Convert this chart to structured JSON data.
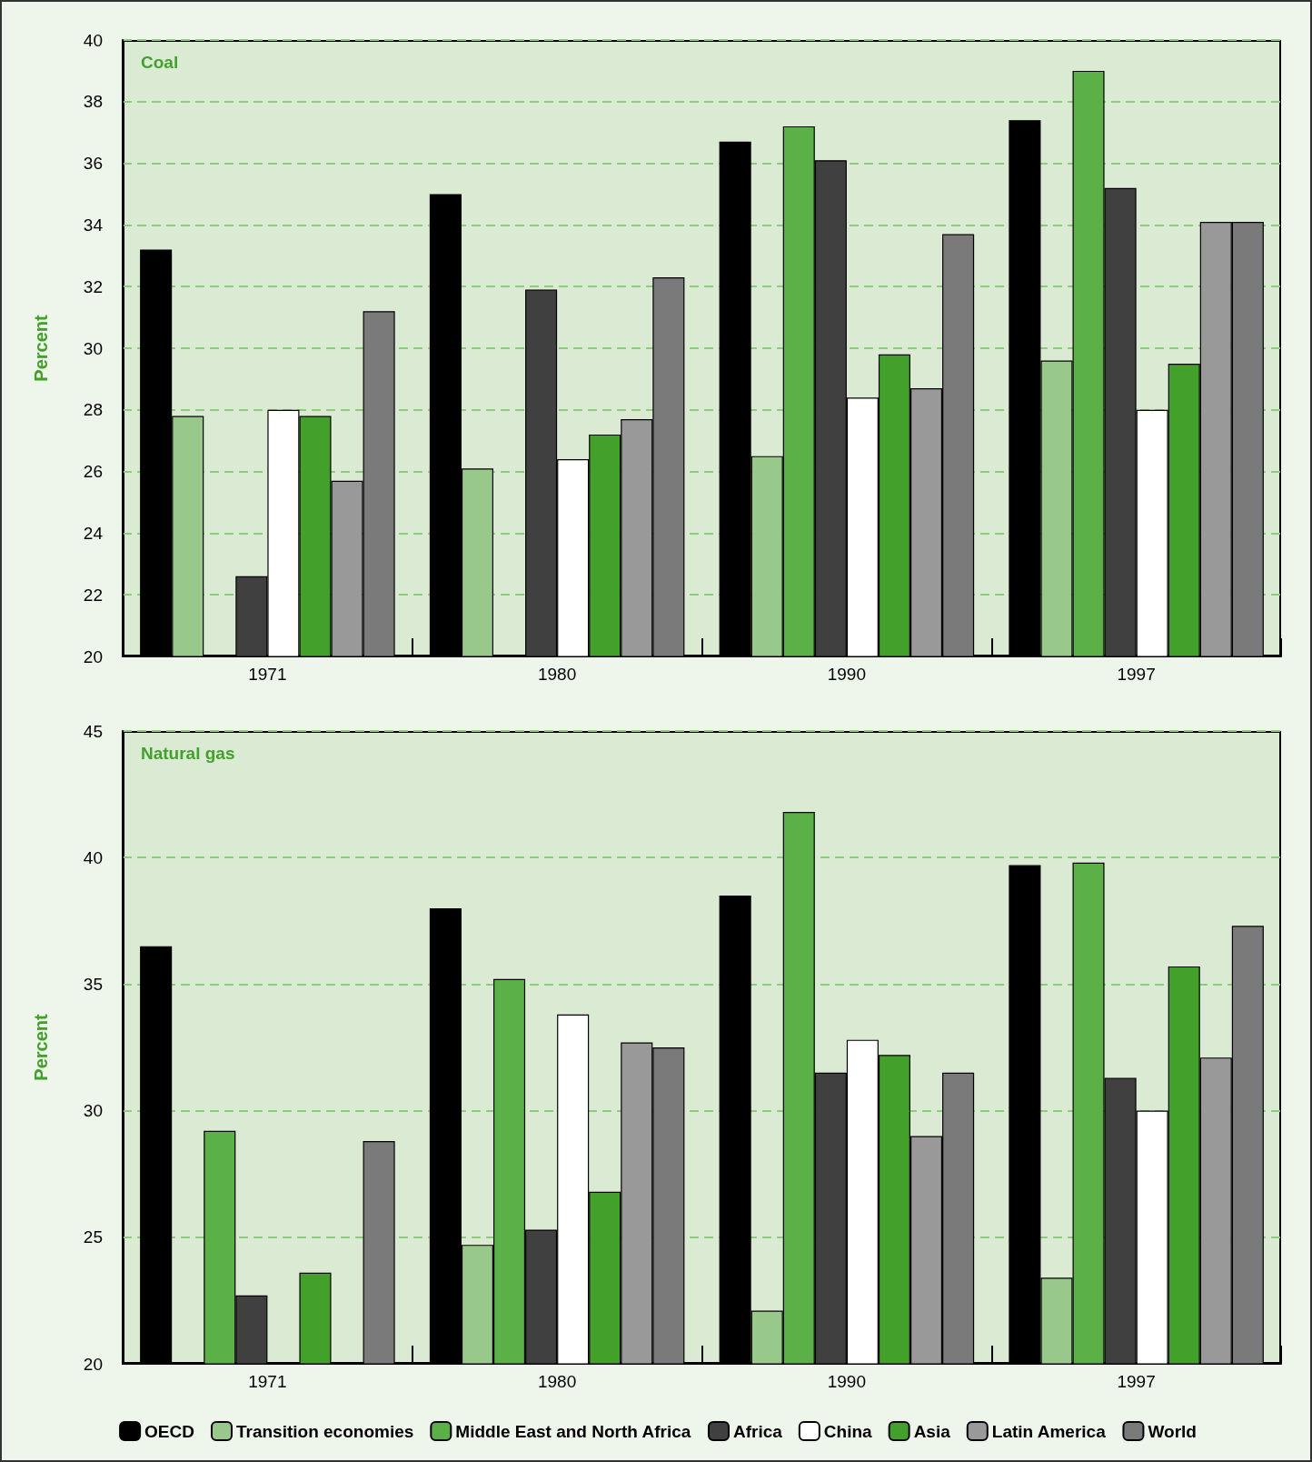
{
  "chart_data": [
    {
      "type": "bar",
      "title": "Coal",
      "ylabel": "Percent",
      "categories": [
        "1971",
        "1980",
        "1990",
        "1997"
      ],
      "ylim": [
        20,
        40
      ],
      "yticks": [
        20,
        22,
        24,
        26,
        28,
        30,
        32,
        34,
        36,
        38,
        40
      ],
      "grid": "y",
      "legend": false,
      "series": [
        {
          "color": "#000000",
          "values": [
            33.2,
            35.0,
            36.7,
            37.4
          ]
        },
        {
          "color": "#98c98a",
          "values": [
            27.8,
            26.1,
            26.5,
            29.6
          ]
        },
        {
          "color": "#5cb048",
          "values": [
            null,
            null,
            37.2,
            39.0
          ]
        },
        {
          "color": "#404040",
          "values": [
            22.6,
            31.9,
            36.1,
            35.2
          ]
        },
        {
          "color": "#ffffff",
          "values": [
            28.0,
            26.4,
            28.4,
            28.0
          ]
        },
        {
          "color": "#43a02b",
          "values": [
            27.8,
            27.2,
            29.8,
            29.5
          ]
        },
        {
          "color": "#999999",
          "values": [
            25.7,
            27.7,
            28.7,
            34.1
          ]
        },
        {
          "color": "#7a7a7a",
          "values": [
            31.2,
            32.3,
            33.7,
            34.1
          ]
        }
      ]
    },
    {
      "type": "bar",
      "title": "Natural gas",
      "ylabel": "Percent",
      "categories": [
        "1971",
        "1980",
        "1990",
        "1997"
      ],
      "ylim": [
        20,
        45
      ],
      "yticks": [
        20,
        25,
        30,
        35,
        40,
        45
      ],
      "grid": "y",
      "legend": "bottom",
      "series": [
        {
          "name": "OECD",
          "color": "#000000",
          "values": [
            36.5,
            38.0,
            38.5,
            39.7
          ]
        },
        {
          "name": "Transition economies",
          "color": "#98c98a",
          "values": [
            null,
            24.7,
            22.1,
            23.4
          ]
        },
        {
          "name": "Middle East and North Africa",
          "color": "#5cb048",
          "values": [
            29.2,
            35.2,
            41.8,
            39.8
          ]
        },
        {
          "name": "Africa",
          "color": "#404040",
          "values": [
            22.7,
            25.3,
            31.5,
            31.3
          ]
        },
        {
          "name": "China",
          "color": "#ffffff",
          "values": [
            null,
            33.8,
            32.8,
            30.0
          ]
        },
        {
          "name": "Asia",
          "color": "#43a02b",
          "values": [
            23.6,
            26.8,
            32.2,
            35.7
          ]
        },
        {
          "name": "Latin America",
          "color": "#999999",
          "values": [
            null,
            32.7,
            29.0,
            32.1
          ]
        },
        {
          "name": "World",
          "color": "#7a7a7a",
          "values": [
            28.8,
            32.5,
            31.5,
            37.3
          ]
        }
      ]
    }
  ]
}
